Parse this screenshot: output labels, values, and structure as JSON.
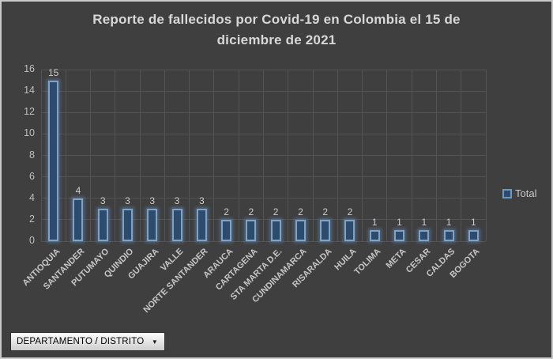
{
  "window": {
    "background": "#3f3f3f",
    "border_color": "#c9c9c9"
  },
  "chart_data": {
    "type": "bar",
    "title": "Reporte de fallecidos por Covid-19 en Colombia el 15 de diciembre de 2021",
    "title_lines": [
      "Reporte de fallecidos por Covid-19 en Colombia el 15 de",
      "diciembre de 2021"
    ],
    "categories": [
      "ANTIOQUIA",
      "SANTANDER",
      "PUTUMAYO",
      "QUINDIO",
      "GUAJIRA",
      "VALLE",
      "NORTE SANTANDER",
      "ARAUCA",
      "CARTAGENA",
      "STA MARTA D.E.",
      "CUNDINAMARCA",
      "RISARALDA",
      "HUILA",
      "TOLIMA",
      "META",
      "CESAR",
      "CALDAS",
      "BOGOTA"
    ],
    "series": [
      {
        "name": "Total",
        "values": [
          15,
          4,
          3,
          3,
          3,
          3,
          3,
          2,
          2,
          2,
          2,
          2,
          2,
          1,
          1,
          1,
          1,
          1
        ]
      }
    ],
    "xlabel": "",
    "ylabel": "",
    "ylim": [
      0,
      16
    ],
    "yticks": [
      0,
      2,
      4,
      6,
      8,
      10,
      12,
      14,
      16
    ],
    "grid": "both",
    "data_labels": true,
    "legend_position": "right",
    "colors": {
      "bar_fill": "#2d4c6d",
      "bar_border": "#7da3c6",
      "bar_glow": "rgba(105,150,200,0.45)",
      "gridline": "#535353",
      "label_text": "#c6c6c6",
      "title_text": "#d8d8d8"
    }
  },
  "filter_button": {
    "label": "DEPARTAMENTO / DISTRITO",
    "arrow_icon": "▼"
  }
}
